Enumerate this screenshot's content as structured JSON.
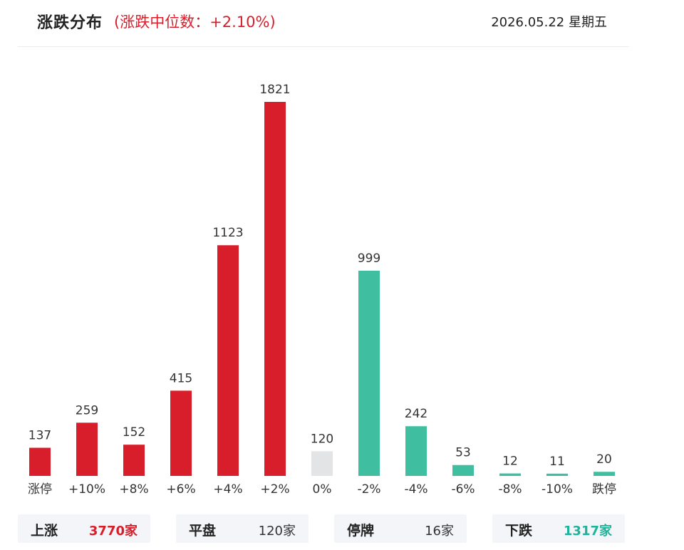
{
  "header": {
    "title": "涨跌分布",
    "median_note": "(涨跌中位数：+2.10%)",
    "date": "2026.05.22 星期五"
  },
  "colors": {
    "up": "#d81e2b",
    "flat": "#e3e4e6",
    "down": "#3fbfa0",
    "accent_down_text": "#1fb39b"
  },
  "chart_data": {
    "type": "bar",
    "title": "",
    "xlabel": "",
    "ylabel": "",
    "categories": [
      "涨停",
      "+10%",
      "+8%",
      "+6%",
      "+4%",
      "+2%",
      "0%",
      "-2%",
      "-4%",
      "-6%",
      "-8%",
      "-10%",
      "跌停"
    ],
    "values": [
      137,
      259,
      152,
      415,
      1123,
      1821,
      120,
      999,
      242,
      53,
      12,
      11,
      20
    ],
    "bar_colors": [
      "up",
      "up",
      "up",
      "up",
      "up",
      "up",
      "flat",
      "down",
      "down",
      "down",
      "down",
      "down",
      "down"
    ],
    "ylim": [
      0,
      1821
    ],
    "grid": false,
    "legend": "none"
  },
  "summary": [
    {
      "name": "上涨",
      "value": "3770家",
      "tone": "up"
    },
    {
      "name": "平盘",
      "value": "120家",
      "tone": "neutral"
    },
    {
      "name": "停牌",
      "value": "16家",
      "tone": "neutral"
    },
    {
      "name": "下跌",
      "value": "1317家",
      "tone": "down"
    }
  ]
}
